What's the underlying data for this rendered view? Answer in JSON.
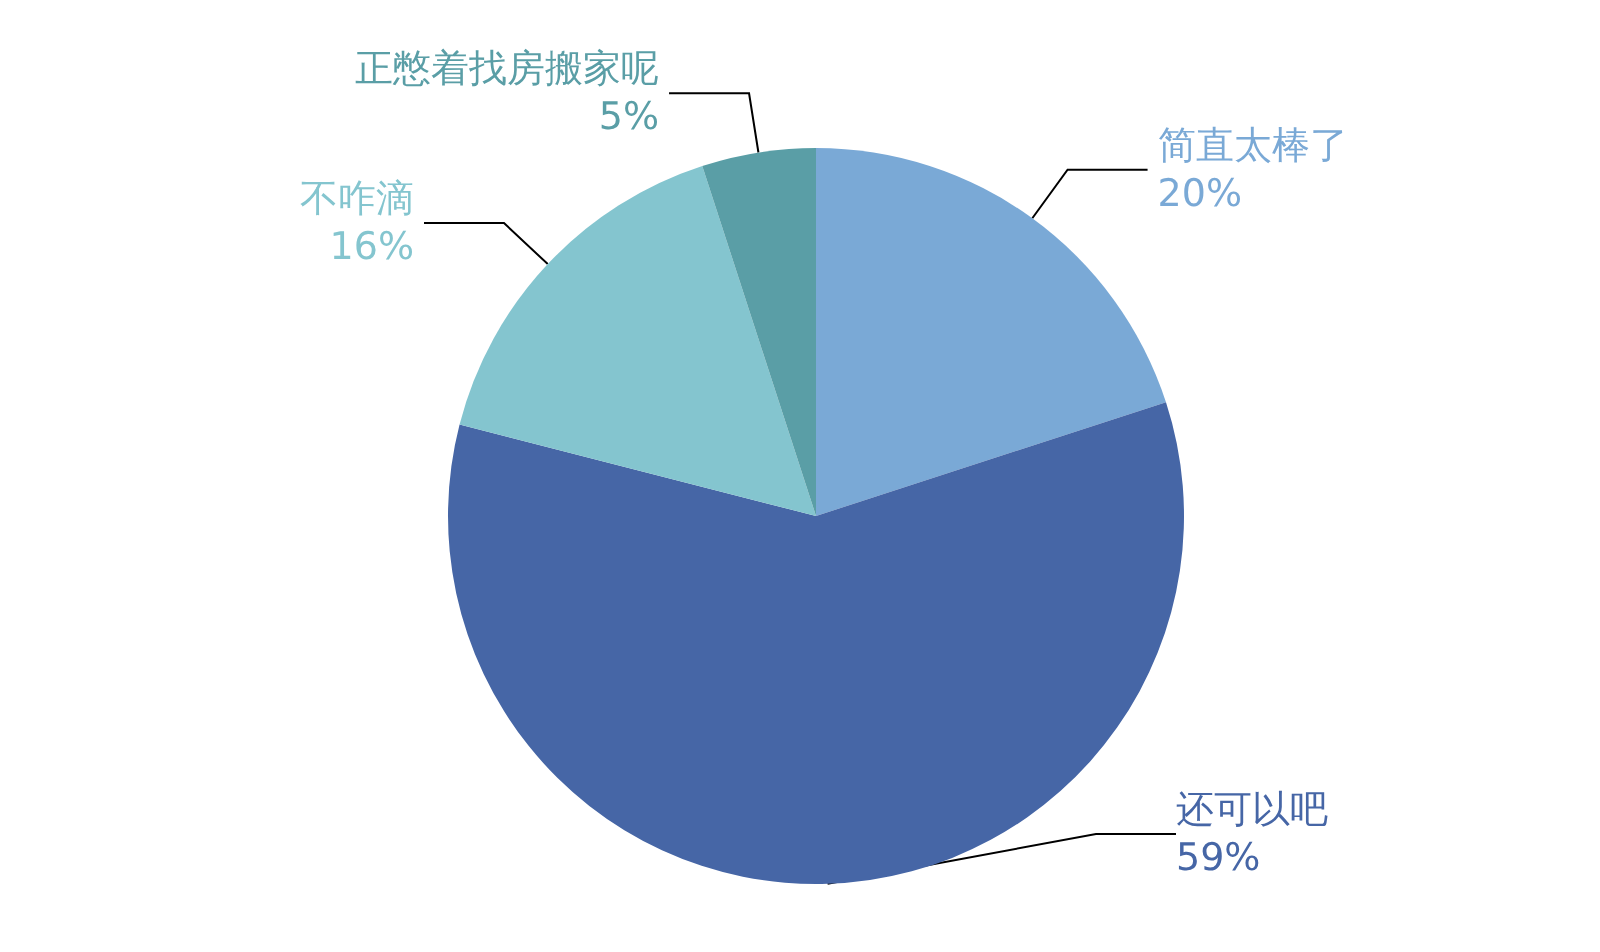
{
  "chart_data": {
    "type": "pie",
    "categories": [
      "简直太棒了",
      "还可以吧",
      "不咋滴",
      "正憋着找房搬家呢"
    ],
    "values": [
      20,
      59,
      16,
      5
    ],
    "value_labels": [
      "20%",
      "59%",
      "16%",
      "5%"
    ],
    "colors": [
      "#7aa9d6",
      "#4666a6",
      "#84c5cf",
      "#5a9ea6"
    ],
    "legend": false
  }
}
